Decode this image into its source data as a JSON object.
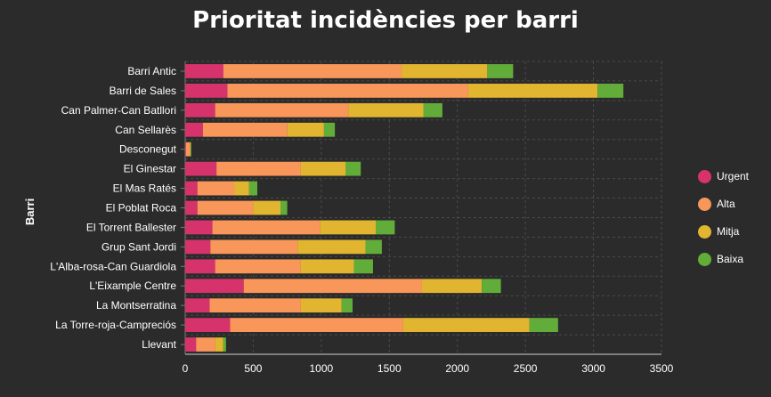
{
  "chart_data": {
    "type": "bar",
    "orientation": "horizontal",
    "stacked": true,
    "title": "Prioritat incidències per barri",
    "xlabel": "",
    "ylabel": "Barri",
    "xlim": [
      0,
      3500
    ],
    "xticks": [
      0,
      500,
      1000,
      1500,
      2000,
      2500,
      3000,
      3500
    ],
    "grid": true,
    "legend_position": "right",
    "categories": [
      "Barri Antic",
      "Barri de Sales",
      "Can Palmer-Can Batllori",
      "Can Sellarès",
      "Desconegut",
      "El Ginestar",
      "El Mas Ratés",
      "El Poblat Roca",
      "El Torrent Ballester",
      "Grup Sant Jordi",
      "L'Alba-rosa-Can Guardiola",
      "L'Eixample Centre",
      "La Montserratina",
      "La Torre-roja-Campreciós",
      "Llevant"
    ],
    "series": [
      {
        "name": "Urgent",
        "color": "#d6336c",
        "values": [
          280,
          310,
          220,
          130,
          5,
          230,
          90,
          90,
          200,
          185,
          220,
          430,
          180,
          330,
          80
        ]
      },
      {
        "name": "Alta",
        "color": "#f9965a",
        "values": [
          1310,
          1770,
          980,
          620,
          30,
          620,
          270,
          410,
          790,
          640,
          630,
          1310,
          670,
          1270,
          140
        ]
      },
      {
        "name": "Mitja",
        "color": "#e1b52f",
        "values": [
          630,
          950,
          550,
          270,
          5,
          330,
          110,
          200,
          410,
          500,
          390,
          440,
          300,
          930,
          60
        ]
      },
      {
        "name": "Baixa",
        "color": "#62ad3a",
        "values": [
          190,
          190,
          140,
          80,
          5,
          110,
          60,
          50,
          140,
          120,
          140,
          140,
          80,
          210,
          20
        ]
      }
    ]
  }
}
